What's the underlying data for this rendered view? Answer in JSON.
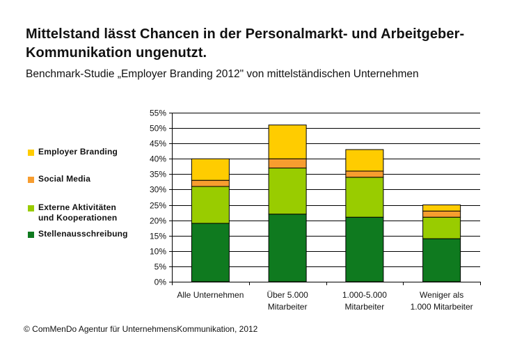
{
  "title": "Mittelstand lässt Chancen in der Personalmarkt- und Arbeitgeber-Kommunikation ungenutzt.",
  "subtitle": "Benchmark-Studie „Employer Branding 2012\" von mittelständischen Unternehmen",
  "footer": "© ComMenDo Agentur für UnternehmensKommunikation, 2012",
  "chart_data": {
    "type": "bar",
    "stacked": true,
    "categories": [
      "Alle Unternehmen",
      "Über 5.000 Mitarbeiter",
      "1.000-5.000 Mitarbeiter",
      "Weniger als 1.000 Mitarbeiter"
    ],
    "category_lines": [
      [
        "Alle Unternehmen"
      ],
      [
        "Über 5.000",
        "Mitarbeiter"
      ],
      [
        "1.000-5.000",
        "Mitarbeiter"
      ],
      [
        "Weniger als",
        "1.000 Mitarbeiter"
      ]
    ],
    "series": [
      {
        "name": "Stellenausschreibung",
        "color": "#0f7a1f",
        "values": [
          19,
          22,
          21,
          14
        ]
      },
      {
        "name": "Externe Aktivitäten und Kooperationen",
        "color": "#99cc00",
        "values": [
          12,
          15,
          13,
          7
        ]
      },
      {
        "name": "Social Media",
        "color": "#f79d2f",
        "values": [
          2,
          3,
          2,
          2
        ]
      },
      {
        "name": "Employer Branding",
        "color": "#ffcc00",
        "values": [
          7,
          11,
          7,
          2
        ]
      }
    ],
    "ylim": [
      0,
      55
    ],
    "yticks": [
      0,
      5,
      10,
      15,
      20,
      25,
      30,
      35,
      40,
      45,
      50,
      55
    ],
    "ytick_labels": [
      "0%",
      "5%",
      "10%",
      "15%",
      "20%",
      "25%",
      "30%",
      "35%",
      "40%",
      "45%",
      "50%",
      "55%"
    ],
    "grid": true,
    "legend_position": "left",
    "xlabel": "",
    "ylabel": ""
  },
  "legend": [
    {
      "label": "Employer Branding",
      "color": "#ffcc00"
    },
    {
      "label": "Social Media",
      "color": "#f79d2f"
    },
    {
      "label": "Externe Aktivitäten\nund Kooperationen",
      "color": "#99cc00"
    },
    {
      "label": "Stellenausschreibung",
      "color": "#0f7a1f"
    }
  ]
}
